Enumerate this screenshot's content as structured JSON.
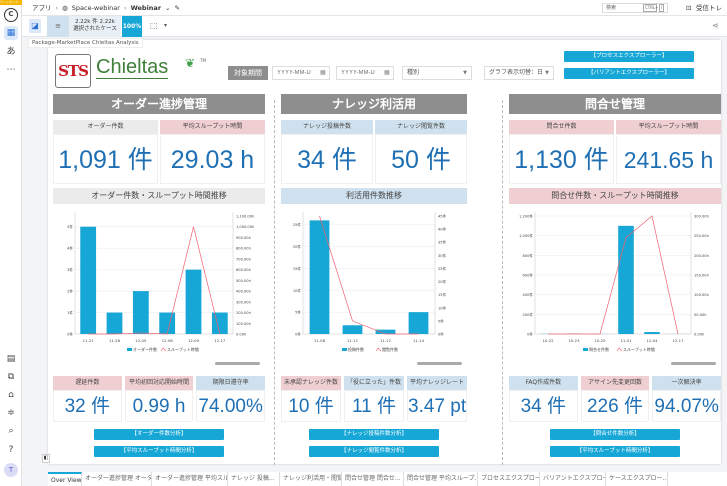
{
  "topbar": {
    "badge": "サンドボック...",
    "breadcrumb": [
      "アプリ",
      "Space-webinar",
      "Webinar"
    ],
    "search_placeholder": "検索",
    "shortcut": [
      "CTRL",
      "+",
      "/"
    ],
    "inbox": "受信トレイ"
  },
  "toolbar": {
    "count": "2.22k 件 2.22k",
    "count_sub": "選択されたケース",
    "percent": "100%",
    "tooltip": "Package-MarketPlace Chieltas Analysis"
  },
  "sidebar": {
    "avatar": "T"
  },
  "header": {
    "logo_text": "STS",
    "brand": "Chieltas",
    "tm": "TM",
    "period_label": "対象期間",
    "date_from_placeholder": "YYYY-MM-D",
    "date_to_placeholder": "YYYY-MM-D",
    "type_select": "種別",
    "graph_select": "グラフ表示切替：日",
    "btn_process": "【プロセスエクスプローラー】",
    "btn_variant": "【バリアントエクスプローラー】"
  },
  "sections": [
    {
      "title": "オーダー進捗管理",
      "kpis": [
        {
          "label": "オーダー件数",
          "value": "1,091 件"
        },
        {
          "label": "平均スループット時間",
          "value": "29.03 h"
        }
      ],
      "chart_title": "オーダー件数・スループット時間推移",
      "kpis2": [
        {
          "label": "遅延件数",
          "value": "32 件"
        },
        {
          "label": "平均初回対応開始時間",
          "value": "0.99 h"
        },
        {
          "label": "期限日遵守率",
          "value": "74.00%"
        }
      ],
      "buttons": [
        "【オーダー件数分析】",
        "【平均スループット時間分析】"
      ]
    },
    {
      "title": "ナレッジ利活用",
      "kpis": [
        {
          "label": "ナレッジ投稿件数",
          "value": "34 件"
        },
        {
          "label": "ナレッジ閲覧件数",
          "value": "50 件"
        }
      ],
      "chart_title": "利活用件数推移",
      "kpis2": [
        {
          "label": "未承認ナレッジ件数",
          "value": "10 件"
        },
        {
          "label": "「役に立った」件数",
          "value": "11 件"
        },
        {
          "label": "平均ナレッジレート",
          "value": "3.47 pt"
        }
      ],
      "buttons": [
        "【ナレッジ投稿件数分析】",
        "【ナレッジ閲覧件数分析】"
      ]
    },
    {
      "title": "問合せ管理",
      "kpis": [
        {
          "label": "問合せ件数",
          "value": "1,130 件"
        },
        {
          "label": "平均スループット時間",
          "value": "241.65 h"
        }
      ],
      "chart_title": "問合せ件数・スループット時間推移",
      "kpis2": [
        {
          "label": "FAQ作成件数",
          "value": "34 件"
        },
        {
          "label": "アサイン先変更回数",
          "value": "226 件"
        },
        {
          "label": "一次解決率",
          "value": "94.07%"
        }
      ],
      "buttons": [
        "【問合せ件数分析】",
        "【平均スループット時間分析】"
      ]
    }
  ],
  "chart_data": [
    {
      "type": "bar+line",
      "categories": [
        "11-21",
        "11-26",
        "12-05",
        "12-06",
        "12-09",
        "12-17"
      ],
      "series": [
        {
          "name": "オーダー件数",
          "type": "bar",
          "axis": "left",
          "values": [
            5,
            1,
            2,
            1,
            3,
            1
          ]
        },
        {
          "name": "スループット時間",
          "type": "line",
          "axis": "right",
          "values": [
            0,
            0,
            10,
            0,
            1000,
            0
          ]
        }
      ],
      "ylim_left": [
        0,
        5.5
      ],
      "yticks_left": [
        0,
        1,
        2,
        3,
        4,
        5
      ],
      "left_unit": "件",
      "ylim_right": [
        0,
        1100
      ],
      "yticks_right": [
        0,
        100,
        200,
        300,
        400,
        500,
        600,
        700,
        800,
        900,
        1000,
        1100
      ],
      "right_fmt": "h2",
      "grid": true,
      "legend": "bottom",
      "colors": {
        "bar": "#17a7d6",
        "line": "#f0606e"
      }
    },
    {
      "type": "bar+line",
      "categories": [
        "11-08",
        "11-11",
        "11-12",
        "11-14"
      ],
      "series": [
        {
          "name": "投稿件数",
          "type": "bar",
          "axis": "left",
          "values": [
            26,
            2,
            1,
            5
          ]
        },
        {
          "name": "閲覧件数",
          "type": "line",
          "axis": "right",
          "values": [
            45,
            5,
            0,
            0
          ]
        }
      ],
      "ylim_left": [
        0,
        27
      ],
      "yticks_left": [
        0,
        5,
        10,
        15,
        20,
        25
      ],
      "left_unit": "件",
      "ylim_right": [
        0,
        45
      ],
      "yticks_right": [
        0,
        5,
        10,
        15,
        20,
        25,
        30,
        35,
        40,
        45
      ],
      "right_fmt": "件",
      "grid": true,
      "legend": "bottom",
      "colors": {
        "bar": "#17a7d6",
        "line": "#f0606e"
      }
    },
    {
      "type": "bar+line",
      "categories": [
        "10-22",
        "10-23",
        "10-25",
        "11-01",
        "12-04",
        "12-17"
      ],
      "series": [
        {
          "name": "問合せ件数",
          "type": "bar",
          "axis": "left",
          "values": [
            2,
            5,
            1,
            1100,
            20,
            1
          ]
        },
        {
          "name": "スループット時間",
          "type": "line",
          "axis": "right",
          "values": [
            0,
            0,
            0,
            245,
            300,
            0
          ]
        }
      ],
      "ylim_left": [
        0,
        1200
      ],
      "yticks_left": [
        0,
        200,
        400,
        600,
        800,
        1000,
        1200
      ],
      "left_unit": "件",
      "ylim_right": [
        0,
        300
      ],
      "yticks_right": [
        0,
        50,
        100,
        150,
        200,
        250,
        300
      ],
      "right_fmt": "h2",
      "grid": true,
      "legend": "bottom",
      "colors": {
        "bar": "#17a7d6",
        "line": "#f0606e"
      }
    }
  ],
  "bottom_tabs": [
    "Over View",
    "オーダー進捗管理 オーダ...",
    "オーダー進捗管理 平均スループ...",
    "ナレッジ 投稿...",
    "ナレッジ利活用・閲覧...",
    "問合せ管理 問合せ...",
    "問合せ管理 平均スループ...",
    "プロセスエクスプロー...",
    "バリアントエクスプロー...",
    "ケースエクスプロー..."
  ]
}
